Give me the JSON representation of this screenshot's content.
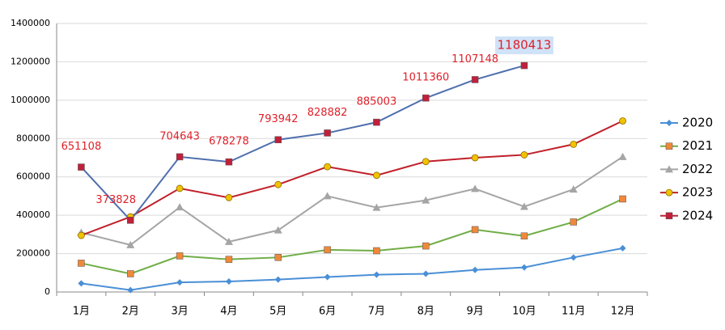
{
  "chart_data": {
    "type": "line",
    "categories": [
      "1月",
      "2月",
      "3月",
      "4月",
      "5月",
      "6月",
      "7月",
      "8月",
      "9月",
      "10月",
      "11月",
      "12月"
    ],
    "series": [
      {
        "name": "2020",
        "color": "#4a8fd6",
        "line_color": "#4a8fd6",
        "marker": "diamond",
        "values": [
          45000,
          10000,
          50000,
          55000,
          65000,
          78000,
          90000,
          95000,
          115000,
          128000,
          180000,
          228000
        ]
      },
      {
        "name": "2021",
        "color": "#f0883a",
        "line_color": "#70ad47",
        "marker": "square",
        "values": [
          150000,
          95000,
          188000,
          170000,
          180000,
          220000,
          215000,
          240000,
          325000,
          292000,
          365000,
          485000
        ]
      },
      {
        "name": "2022",
        "color": "#a5a5a5",
        "line_color": "#a5a5a5",
        "marker": "triangle",
        "values": [
          310000,
          245000,
          442000,
          262000,
          322000,
          500000,
          440000,
          478000,
          538000,
          445000,
          535000,
          705000
        ]
      },
      {
        "name": "2023",
        "color": "#f2c200",
        "line_color": "#c0202a",
        "marker": "circle",
        "values": [
          295000,
          392000,
          540000,
          492000,
          560000,
          653000,
          608000,
          680000,
          700000,
          715000,
          770000,
          892000
        ]
      },
      {
        "name": "2024",
        "color": "#c0203a",
        "line_color": "#4f6fad",
        "marker": "square",
        "values": [
          651108,
          373828,
          704643,
          678278,
          793942,
          828882,
          885003,
          1011360,
          1107148,
          1180413,
          null,
          null
        ],
        "data_labels": true
      }
    ],
    "ylim": [
      0,
      1400000
    ],
    "yticks": [
      0,
      200000,
      400000,
      600000,
      800000,
      1000000,
      1200000,
      1400000
    ],
    "grid": true,
    "legend": "right"
  }
}
